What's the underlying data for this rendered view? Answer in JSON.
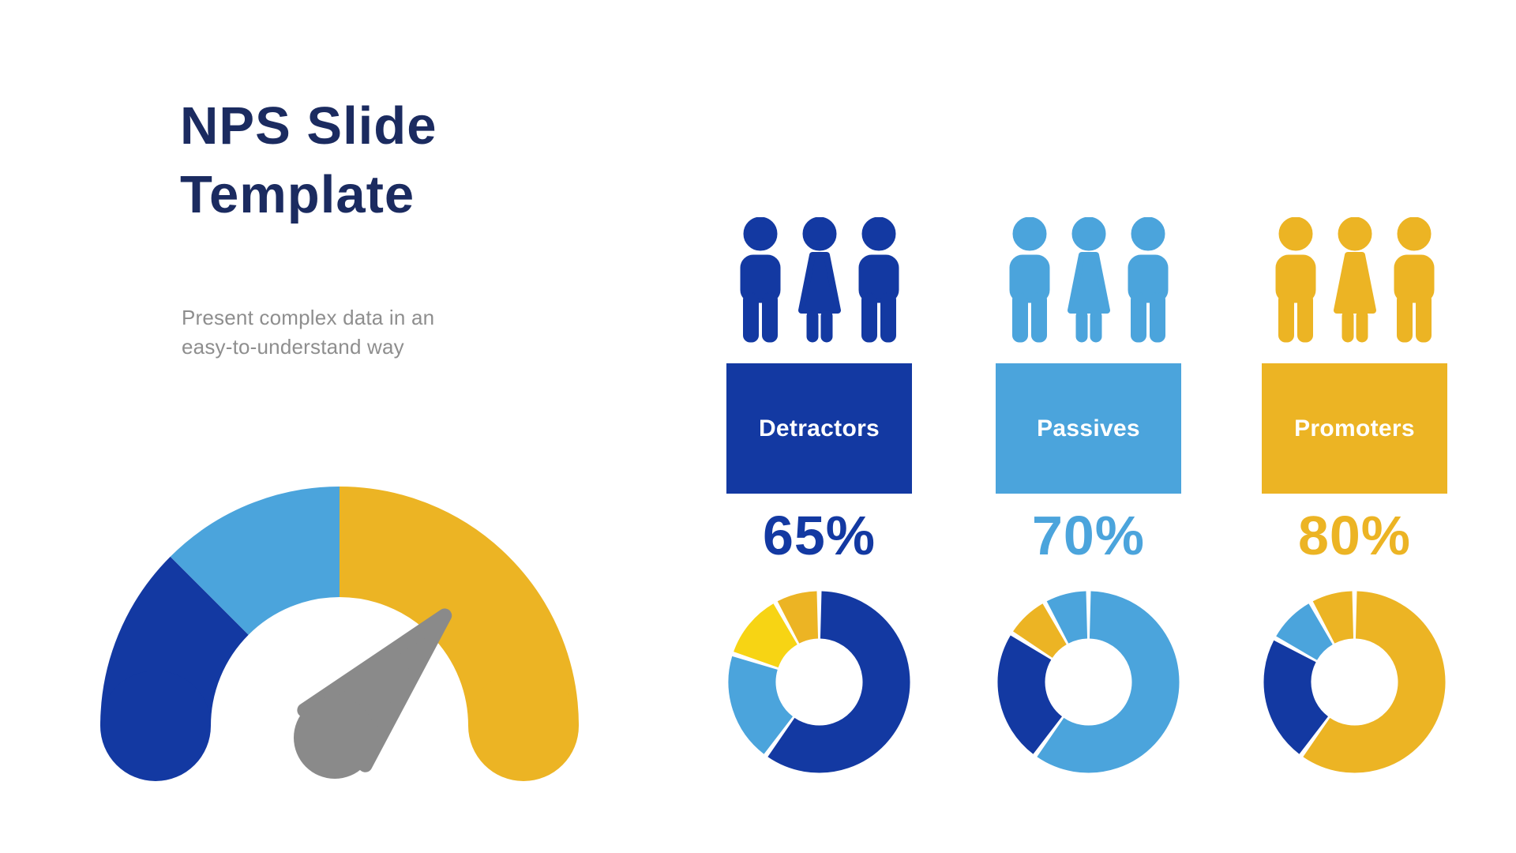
{
  "slide": {
    "title_line1": "NPS Slide",
    "title_line2": "Template",
    "subtitle_line1": "Present complex data in an",
    "subtitle_line2": "easy-to-understand way"
  },
  "colors": {
    "navy_title": "#1B2B60",
    "dark_blue": "#1339A2",
    "light_blue": "#4BA4DC",
    "gold": "#ECB424",
    "bright_yellow": "#F7D414",
    "needle_gray": "#8A8A8A",
    "text_gray": "#8E8E8E",
    "white": "#FFFFFF"
  },
  "chart_data": [
    {
      "type": "gauge",
      "title": "NPS speedometer gauge",
      "shape": "semicircle",
      "segments": [
        {
          "label": "detractors-zone",
          "color": "dark_blue",
          "start_deg": -90,
          "end_deg": -45
        },
        {
          "label": "passives-zone",
          "color": "light_blue",
          "start_deg": -45,
          "end_deg": 0
        },
        {
          "label": "promoters-zone",
          "color": "gold",
          "start_deg": 0,
          "end_deg": 90
        }
      ],
      "needle": {
        "angle_deg_from_vertical": 42,
        "direction": "pointing-upper-right-into-gold-zone",
        "color": "needle_gray"
      },
      "rounded_end_caps": true
    },
    {
      "type": "pie",
      "variant": "donut",
      "group": "Detractors",
      "displayed_percent": "65%",
      "start": "top",
      "direction": "clockwise",
      "segments": [
        {
          "color": "dark_blue",
          "value": 60
        },
        {
          "color": "light_blue",
          "value": 20
        },
        {
          "color": "bright_yellow",
          "value": 12
        },
        {
          "color": "gold",
          "value": 8
        }
      ]
    },
    {
      "type": "pie",
      "variant": "donut",
      "group": "Passives",
      "displayed_percent": "70%",
      "start": "top",
      "direction": "clockwise",
      "segments": [
        {
          "color": "light_blue",
          "value": 60
        },
        {
          "color": "dark_blue",
          "value": 24
        },
        {
          "color": "gold",
          "value": 8
        },
        {
          "color": "light_blue",
          "value": 8
        }
      ]
    },
    {
      "type": "pie",
      "variant": "donut",
      "group": "Promoters",
      "displayed_percent": "80%",
      "start": "top",
      "direction": "clockwise",
      "segments": [
        {
          "color": "gold",
          "value": 60
        },
        {
          "color": "dark_blue",
          "value": 23
        },
        {
          "color": "light_blue",
          "value": 9
        },
        {
          "color": "gold",
          "value": 8
        }
      ]
    }
  ],
  "groups": [
    {
      "name": "detractors",
      "label": "Detractors",
      "percent": "65%",
      "color": "dark_blue",
      "people_icons": [
        "person-man-icon",
        "person-woman-icon",
        "person-man-icon"
      ],
      "donut_chart_index": 1
    },
    {
      "name": "passives",
      "label": "Passives",
      "percent": "70%",
      "color": "light_blue",
      "people_icons": [
        "person-man-icon",
        "person-woman-icon",
        "person-man-icon"
      ],
      "donut_chart_index": 2
    },
    {
      "name": "promoters",
      "label": "Promoters",
      "percent": "80%",
      "color": "gold",
      "people_icons": [
        "person-man-icon",
        "person-woman-icon",
        "person-man-icon"
      ],
      "donut_chart_index": 3
    }
  ]
}
